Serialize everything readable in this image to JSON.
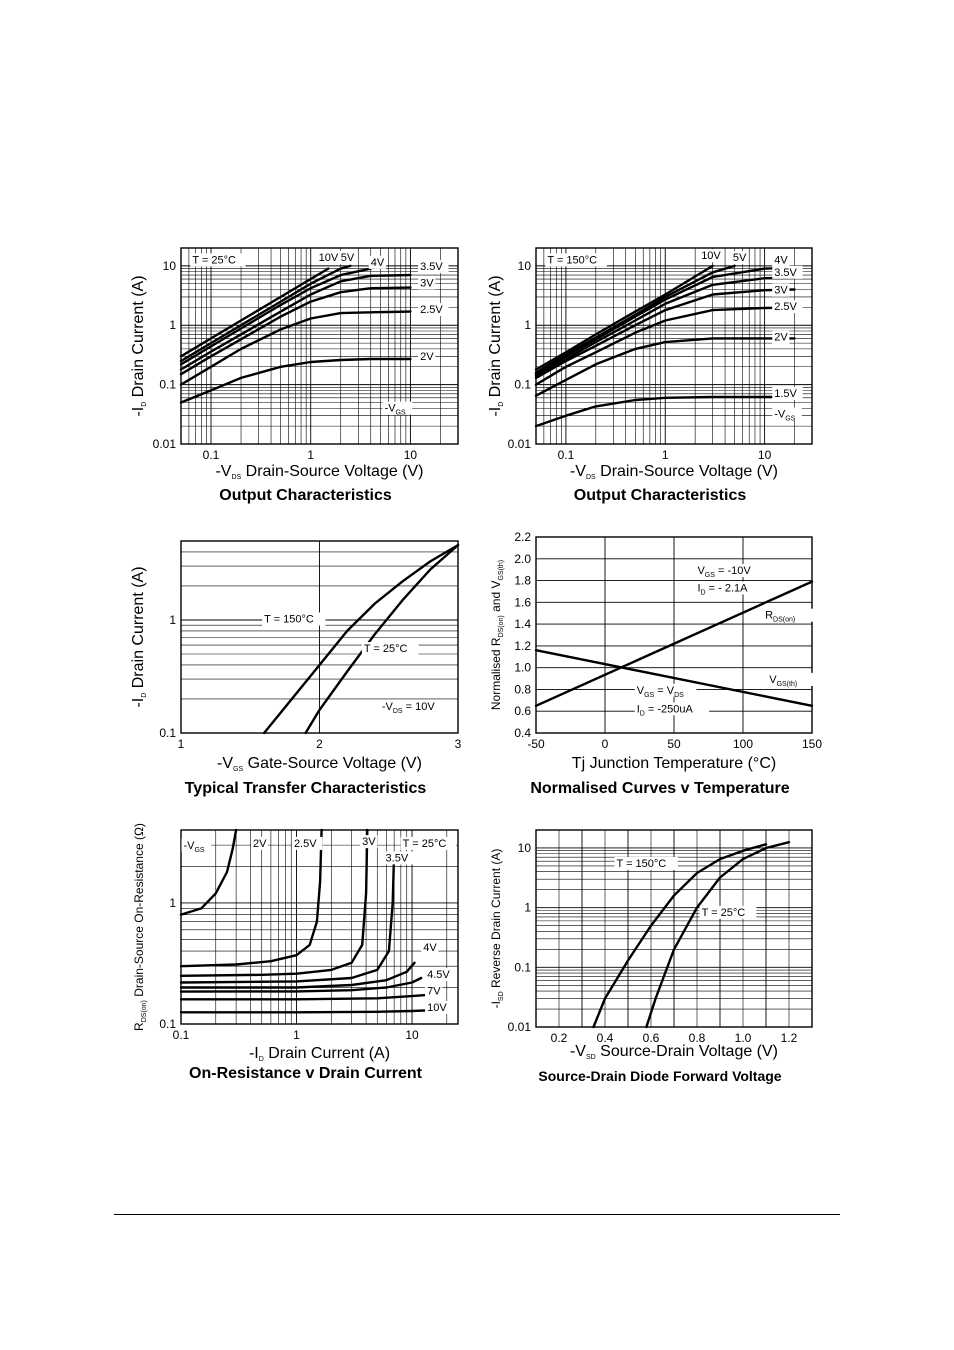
{
  "chart_data": [
    {
      "id": "c1",
      "type": "line",
      "title": "Output Characteristics",
      "xlabel": "-VDS  Drain-Source Voltage (V)",
      "ylabel": "-ID  Drain Current (A)",
      "xscale": "log",
      "yscale": "log",
      "xlim": [
        0.05,
        30
      ],
      "ylim": [
        0.01,
        20
      ],
      "xticks": [
        {
          "v": 0.1,
          "t": "0.1"
        },
        {
          "v": 1,
          "t": "1"
        },
        {
          "v": 10,
          "t": "10"
        }
      ],
      "yticks": [
        {
          "v": 0.01,
          "t": "0.01"
        },
        {
          "v": 0.1,
          "t": "0.1"
        },
        {
          "v": 1,
          "t": "1"
        },
        {
          "v": 10,
          "t": "10"
        }
      ],
      "grid": true,
      "annotations": [
        {
          "text": "T = 25°C",
          "x": 0.065,
          "y": 11
        },
        {
          "text": "-VGS",
          "x": 5.5,
          "y": 0.035
        }
      ],
      "series": [
        {
          "name": "10V",
          "x": [
            0.05,
            0.1,
            0.2,
            0.5,
            1,
            1.5
          ],
          "y": [
            0.3,
            0.6,
            1.2,
            3.0,
            6.0,
            9.0
          ],
          "label_at": [
            1.2,
            12
          ]
        },
        {
          "name": "5V",
          "x": [
            0.05,
            0.1,
            0.2,
            0.5,
            1,
            2,
            2.5
          ],
          "y": [
            0.25,
            0.5,
            1.0,
            2.5,
            5.0,
            9.0,
            10.0
          ],
          "label_at": [
            2.0,
            12
          ]
        },
        {
          "name": "4V",
          "x": [
            0.05,
            0.1,
            0.2,
            0.5,
            1,
            2,
            4
          ],
          "y": [
            0.22,
            0.44,
            0.88,
            2.2,
            4.2,
            7.0,
            9.0
          ],
          "label_at": [
            4.0,
            10
          ]
        },
        {
          "name": "3.5V",
          "x": [
            0.05,
            0.1,
            0.2,
            0.5,
            1,
            2,
            4,
            10
          ],
          "y": [
            0.18,
            0.36,
            0.7,
            1.7,
            3.3,
            5.5,
            6.8,
            7.0
          ],
          "label_at": [
            12.5,
            8.5
          ]
        },
        {
          "name": "3V",
          "x": [
            0.05,
            0.1,
            0.2,
            0.5,
            1,
            2,
            4,
            10
          ],
          "y": [
            0.15,
            0.3,
            0.58,
            1.4,
            2.5,
            3.6,
            4.2,
            4.3
          ],
          "label_at": [
            12.5,
            4.5
          ]
        },
        {
          "name": "2.5V",
          "x": [
            0.05,
            0.1,
            0.2,
            0.5,
            1,
            2,
            4,
            10
          ],
          "y": [
            0.1,
            0.2,
            0.4,
            0.85,
            1.3,
            1.6,
            1.65,
            1.7
          ],
          "label_at": [
            12.5,
            1.6
          ]
        },
        {
          "name": "2V",
          "x": [
            0.05,
            0.1,
            0.2,
            0.5,
            1,
            2,
            4,
            10
          ],
          "y": [
            0.05,
            0.08,
            0.13,
            0.2,
            0.24,
            0.26,
            0.27,
            0.27
          ],
          "label_at": [
            12.5,
            0.26
          ]
        }
      ]
    },
    {
      "id": "c2",
      "type": "line",
      "title": "Output Characteristics",
      "xlabel": "-VDS  Drain-Source Voltage (V)",
      "ylabel": "-ID  Drain Current (A)",
      "xscale": "log",
      "yscale": "log",
      "xlim": [
        0.05,
        30
      ],
      "ylim": [
        0.01,
        20
      ],
      "xticks": [
        {
          "v": 0.1,
          "t": "0.1"
        },
        {
          "v": 1,
          "t": "1"
        },
        {
          "v": 10,
          "t": "10"
        }
      ],
      "yticks": [
        {
          "v": 0.01,
          "t": "0.01"
        },
        {
          "v": 0.1,
          "t": "0.1"
        },
        {
          "v": 1,
          "t": "1"
        },
        {
          "v": 10,
          "t": "10"
        }
      ],
      "grid": true,
      "annotations": [
        {
          "text": "T = 150°C",
          "x": 0.065,
          "y": 11
        },
        {
          "text": "-VGS",
          "x": 12.5,
          "y": 0.028
        }
      ],
      "series": [
        {
          "name": "10V",
          "x": [
            0.05,
            0.1,
            0.2,
            0.5,
            1,
            3
          ],
          "y": [
            0.18,
            0.35,
            0.7,
            1.7,
            3.3,
            10.0
          ],
          "label_at": [
            2.3,
            13
          ]
        },
        {
          "name": "5V",
          "x": [
            0.05,
            0.1,
            0.2,
            0.5,
            1,
            3,
            5
          ],
          "y": [
            0.16,
            0.32,
            0.62,
            1.5,
            3.0,
            7.8,
            10.0
          ],
          "label_at": [
            4.8,
            12
          ]
        },
        {
          "name": "4V",
          "x": [
            0.05,
            0.1,
            0.2,
            0.5,
            1,
            3,
            10,
            20
          ],
          "y": [
            0.15,
            0.3,
            0.58,
            1.4,
            2.7,
            6.5,
            9.0,
            9.2
          ],
          "label_at": [
            12.5,
            11
          ]
        },
        {
          "name": "3.5V",
          "x": [
            0.05,
            0.1,
            0.2,
            0.5,
            1,
            3,
            10,
            20
          ],
          "y": [
            0.14,
            0.27,
            0.52,
            1.2,
            2.3,
            4.8,
            6.2,
            6.3
          ],
          "label_at": [
            12.5,
            6.8
          ]
        },
        {
          "name": "3V",
          "x": [
            0.05,
            0.1,
            0.2,
            0.5,
            1,
            3,
            10,
            20
          ],
          "y": [
            0.13,
            0.25,
            0.45,
            1.0,
            1.8,
            3.3,
            3.9,
            4.0
          ],
          "label_at": [
            12.5,
            3.4
          ]
        },
        {
          "name": "2.5V",
          "x": [
            0.05,
            0.1,
            0.2,
            0.5,
            1,
            3,
            10,
            20
          ],
          "y": [
            0.1,
            0.2,
            0.35,
            0.75,
            1.2,
            1.8,
            1.95,
            2.0
          ],
          "label_at": [
            12.5,
            1.8
          ]
        },
        {
          "name": "2V",
          "x": [
            0.05,
            0.1,
            0.2,
            0.5,
            1,
            3,
            10,
            20
          ],
          "y": [
            0.065,
            0.12,
            0.22,
            0.4,
            0.52,
            0.6,
            0.6,
            0.6
          ],
          "label_at": [
            12.5,
            0.55
          ]
        },
        {
          "name": "1.5V",
          "x": [
            0.05,
            0.1,
            0.2,
            0.5,
            1,
            3,
            10,
            20
          ],
          "y": [
            0.02,
            0.03,
            0.043,
            0.055,
            0.06,
            0.062,
            0.062,
            0.062
          ],
          "label_at": [
            12.5,
            0.062
          ]
        }
      ]
    },
    {
      "id": "c3",
      "type": "line",
      "title": "Typical Transfer Characteristics",
      "xlabel": "-VGS  Gate-Source Voltage (V)",
      "ylabel": "-ID  Drain Current (A)",
      "xscale": "linear",
      "yscale": "log",
      "xlim": [
        1,
        3
      ],
      "ylim": [
        0.1,
        5
      ],
      "xticks": [
        {
          "v": 1,
          "t": "1"
        },
        {
          "v": 2,
          "t": "2"
        },
        {
          "v": 3,
          "t": "3"
        }
      ],
      "yticks": [
        {
          "v": 0.1,
          "t": "0.1"
        },
        {
          "v": 1,
          "t": "1"
        }
      ],
      "grid": true,
      "annotations": [
        {
          "text": "-VDS = 10V",
          "x": 2.45,
          "y": 0.16
        }
      ],
      "series": [
        {
          "name": "T = 150°C",
          "x": [
            1.6,
            1.8,
            2.0,
            2.2,
            2.4,
            2.6,
            2.8,
            3.0
          ],
          "y": [
            0.1,
            0.2,
            0.4,
            0.8,
            1.4,
            2.2,
            3.3,
            4.6
          ],
          "label_at": [
            1.6,
            0.95
          ]
        },
        {
          "name": "T = 25°C",
          "x": [
            1.9,
            2.0,
            2.2,
            2.4,
            2.6,
            2.8,
            3.0
          ],
          "y": [
            0.1,
            0.16,
            0.35,
            0.75,
            1.5,
            2.8,
            4.6
          ],
          "label_at": [
            2.32,
            0.52
          ]
        }
      ]
    },
    {
      "id": "c4",
      "type": "line",
      "title": "Normalised Curves v Temperature",
      "xlabel": "Tj  Junction Temperature (°C)",
      "ylabel": "Normalised RDS(on) and VGS(th)",
      "xscale": "linear",
      "yscale": "linear",
      "xlim": [
        -50,
        150
      ],
      "ylim": [
        0.4,
        2.2
      ],
      "xticks": [
        {
          "v": -50,
          "t": "-50"
        },
        {
          "v": 0,
          "t": "0"
        },
        {
          "v": 50,
          "t": "50"
        },
        {
          "v": 100,
          "t": "100"
        },
        {
          "v": 150,
          "t": "150"
        }
      ],
      "yticks": [
        {
          "v": 0.4,
          "t": "0.4"
        },
        {
          "v": 0.6,
          "t": "0.6"
        },
        {
          "v": 0.8,
          "t": "0.8"
        },
        {
          "v": 1.0,
          "t": "1.0"
        },
        {
          "v": 1.2,
          "t": "1.2"
        },
        {
          "v": 1.4,
          "t": "1.4"
        },
        {
          "v": 1.6,
          "t": "1.6"
        },
        {
          "v": 1.8,
          "t": "1.8"
        },
        {
          "v": 2.0,
          "t": "2.0"
        },
        {
          "v": 2.2,
          "t": "2.2"
        }
      ],
      "grid": true,
      "annotations": [
        {
          "text": "VGS = -10V",
          "x": 67,
          "y": 1.86
        },
        {
          "text": "ID = - 2.1A",
          "x": 67,
          "y": 1.7
        },
        {
          "text": "VGS = VDS",
          "x": 23,
          "y": 0.76
        },
        {
          "text": "ID = -250uA",
          "x": 23,
          "y": 0.59
        }
      ],
      "series": [
        {
          "name": "RDS(on)",
          "x": [
            -50,
            150
          ],
          "y": [
            0.65,
            1.79
          ],
          "label_at": [
            116,
            1.45
          ]
        },
        {
          "name": "VGS(th)",
          "x": [
            -50,
            150
          ],
          "y": [
            1.16,
            0.65
          ],
          "label_at": [
            119,
            0.86
          ]
        }
      ]
    },
    {
      "id": "c5",
      "type": "line",
      "title": "On-Resistance v Drain Current",
      "xlabel": "-ID  Drain Current (A)",
      "ylabel": "RDS(on)  Drain-Source On-Resistance (Ω)",
      "xscale": "log",
      "yscale": "log",
      "xlim": [
        0.1,
        25
      ],
      "ylim": [
        0.1,
        4
      ],
      "xticks": [
        {
          "v": 0.1,
          "t": "0.1"
        },
        {
          "v": 1,
          "t": "1"
        },
        {
          "v": 10,
          "t": "10"
        }
      ],
      "yticks": [
        {
          "v": 0.1,
          "t": "0.1"
        },
        {
          "v": 1,
          "t": "1"
        }
      ],
      "grid": true,
      "annotations": [
        {
          "text": "-VGS",
          "x": 0.105,
          "y": 2.8
        },
        {
          "text": "T = 25°C",
          "x": 8.3,
          "y": 2.9
        }
      ],
      "series": [
        {
          "name": "2V",
          "x": [
            0.1,
            0.15,
            0.2,
            0.25,
            0.28,
            0.3
          ],
          "y": [
            0.8,
            0.9,
            1.2,
            1.8,
            2.8,
            4.0
          ],
          "label_at": [
            0.42,
            2.9
          ]
        },
        {
          "name": "2.5V",
          "x": [
            0.1,
            0.3,
            0.6,
            1.0,
            1.3,
            1.5,
            1.6,
            1.65
          ],
          "y": [
            0.3,
            0.31,
            0.33,
            0.37,
            0.45,
            0.7,
            1.5,
            4.0
          ],
          "label_at": [
            0.95,
            2.9
          ]
        },
        {
          "name": "3V",
          "x": [
            0.1,
            0.5,
            1,
            2,
            3,
            3.7,
            4.0,
            4.1
          ],
          "y": [
            0.25,
            0.255,
            0.26,
            0.28,
            0.32,
            0.45,
            1.2,
            4.0
          ],
          "label_at": [
            3.7,
            3.0
          ]
        },
        {
          "name": "3.5V",
          "x": [
            0.1,
            1,
            3,
            5,
            6.3,
            6.8,
            7.0
          ],
          "y": [
            0.22,
            0.225,
            0.24,
            0.28,
            0.4,
            1.0,
            2.6
          ],
          "label_at": [
            5.9,
            2.2
          ]
        },
        {
          "name": "4V",
          "x": [
            0.1,
            1,
            3,
            6,
            9,
            10.5
          ],
          "y": [
            0.2,
            0.2,
            0.21,
            0.23,
            0.27,
            0.32
          ],
          "label_at": [
            12.5,
            0.4
          ]
        },
        {
          "name": "4.5V",
          "x": [
            0.1,
            1,
            3,
            6,
            10,
            12
          ],
          "y": [
            0.185,
            0.186,
            0.19,
            0.2,
            0.22,
            0.24
          ],
          "label_at": [
            13.5,
            0.24
          ]
        },
        {
          "name": "7V",
          "x": [
            0.1,
            1,
            5,
            10,
            15
          ],
          "y": [
            0.16,
            0.16,
            0.163,
            0.17,
            0.175
          ],
          "label_at": [
            13.5,
            0.175
          ]
        },
        {
          "name": "10V",
          "x": [
            0.1,
            1,
            5,
            10,
            15
          ],
          "y": [
            0.125,
            0.125,
            0.126,
            0.128,
            0.13
          ],
          "label_at": [
            13.5,
            0.128
          ]
        }
      ]
    },
    {
      "id": "c6",
      "type": "line",
      "title": "Source-Drain Diode Forward Voltage",
      "xlabel": "-VSD  Source-Drain Voltage (V)",
      "ylabel": "-ISD  Reverse Drain Current (A)",
      "xscale": "linear",
      "yscale": "log",
      "xlim": [
        0.1,
        1.3
      ],
      "ylim": [
        0.01,
        20
      ],
      "xticks": [
        {
          "v": 0.2,
          "t": "0.2"
        },
        {
          "v": 0.4,
          "t": "0.4"
        },
        {
          "v": 0.6,
          "t": "0.6"
        },
        {
          "v": 0.8,
          "t": "0.8"
        },
        {
          "v": 1.0,
          "t": "1.0"
        },
        {
          "v": 1.2,
          "t": "1.2"
        }
      ],
      "yticks": [
        {
          "v": 0.01,
          "t": "0.01"
        },
        {
          "v": 0.1,
          "t": "0.1"
        },
        {
          "v": 1,
          "t": "1"
        },
        {
          "v": 10,
          "t": "10"
        }
      ],
      "grid": true,
      "annotations": [],
      "series": [
        {
          "name": "T = 150°C",
          "x": [
            0.35,
            0.4,
            0.5,
            0.6,
            0.7,
            0.8,
            0.9,
            1.0,
            1.1
          ],
          "y": [
            0.01,
            0.03,
            0.13,
            0.5,
            1.6,
            3.8,
            6.5,
            9.0,
            11.5
          ],
          "label_at": [
            0.45,
            4.8
          ]
        },
        {
          "name": "T = 25°C",
          "x": [
            0.58,
            0.62,
            0.7,
            0.8,
            0.9,
            1.0,
            1.1,
            1.2
          ],
          "y": [
            0.01,
            0.03,
            0.2,
            1.0,
            3.2,
            6.5,
            10.0,
            12.5
          ],
          "label_at": [
            0.82,
            0.73
          ]
        }
      ]
    }
  ]
}
